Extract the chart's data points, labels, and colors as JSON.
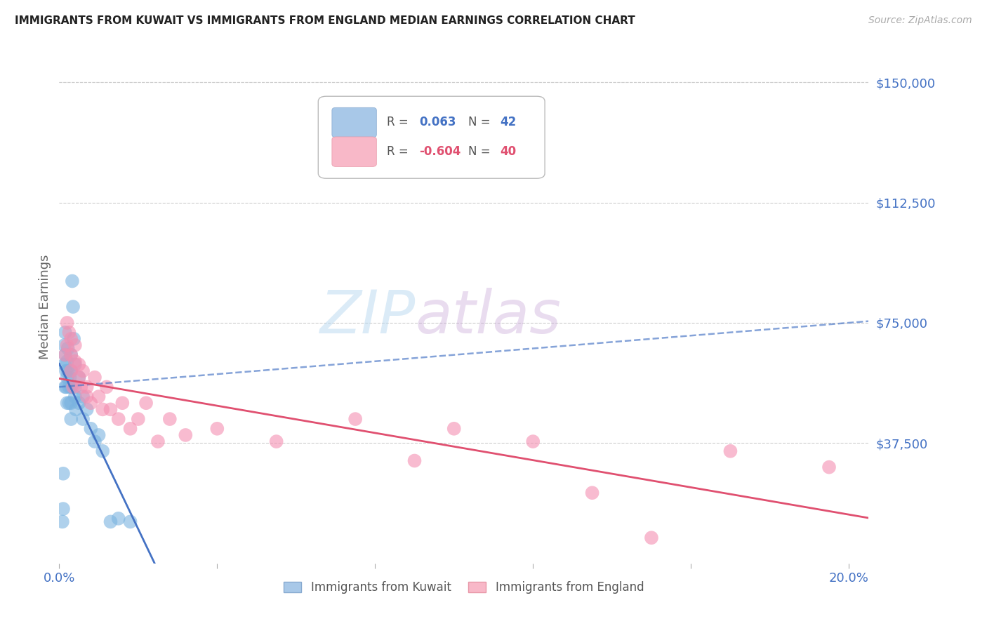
{
  "title": "IMMIGRANTS FROM KUWAIT VS IMMIGRANTS FROM ENGLAND MEDIAN EARNINGS CORRELATION CHART",
  "source": "Source: ZipAtlas.com",
  "ylabel": "Median Earnings",
  "ylim": [
    0,
    160000
  ],
  "xlim": [
    0.0,
    0.205
  ],
  "r_kuwait": 0.063,
  "n_kuwait": 42,
  "r_england": -0.604,
  "n_england": 40,
  "color_kuwait": "#7ab3e0",
  "color_england": "#f48fb1",
  "line_color_kuwait": "#4472c4",
  "line_color_england": "#e05070",
  "axis_label_color": "#4472c4",
  "kuwait_x": [
    0.0008,
    0.001,
    0.001,
    0.0013,
    0.0013,
    0.0015,
    0.0015,
    0.0015,
    0.0017,
    0.0018,
    0.002,
    0.002,
    0.002,
    0.0022,
    0.0022,
    0.0025,
    0.0025,
    0.0027,
    0.003,
    0.003,
    0.003,
    0.003,
    0.003,
    0.0033,
    0.0035,
    0.0037,
    0.004,
    0.004,
    0.004,
    0.0042,
    0.005,
    0.005,
    0.006,
    0.006,
    0.007,
    0.008,
    0.009,
    0.01,
    0.011,
    0.013,
    0.015,
    0.018
  ],
  "kuwait_y": [
    13000,
    28000,
    17000,
    62000,
    68000,
    72000,
    65000,
    55000,
    60000,
    55000,
    63000,
    58000,
    50000,
    67000,
    60000,
    55000,
    50000,
    58000,
    65000,
    60000,
    55000,
    50000,
    45000,
    88000,
    80000,
    70000,
    52000,
    55000,
    62000,
    48000,
    58000,
    50000,
    45000,
    52000,
    48000,
    42000,
    38000,
    40000,
    35000,
    13000,
    14000,
    13000
  ],
  "england_x": [
    0.0015,
    0.002,
    0.002,
    0.0025,
    0.003,
    0.003,
    0.003,
    0.0035,
    0.004,
    0.004,
    0.005,
    0.005,
    0.0055,
    0.006,
    0.007,
    0.007,
    0.008,
    0.009,
    0.01,
    0.011,
    0.012,
    0.013,
    0.015,
    0.016,
    0.018,
    0.02,
    0.022,
    0.025,
    0.028,
    0.032,
    0.04,
    0.055,
    0.075,
    0.09,
    0.1,
    0.12,
    0.135,
    0.15,
    0.17,
    0.195
  ],
  "england_y": [
    65000,
    68000,
    75000,
    72000,
    60000,
    65000,
    70000,
    55000,
    63000,
    68000,
    58000,
    62000,
    55000,
    60000,
    52000,
    55000,
    50000,
    58000,
    52000,
    48000,
    55000,
    48000,
    45000,
    50000,
    42000,
    45000,
    50000,
    38000,
    45000,
    40000,
    42000,
    38000,
    45000,
    32000,
    42000,
    38000,
    22000,
    8000,
    35000,
    30000
  ]
}
